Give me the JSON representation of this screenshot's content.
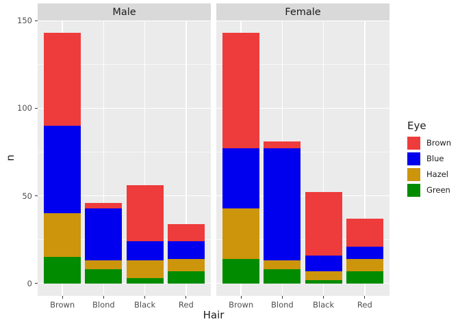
{
  "colors": {
    "background": "#FFFFFF",
    "panel_background": "#EBEBEB",
    "strip_background": "#D9D9D9",
    "grid_major": "#FFFFFF",
    "grid_minor": "#FFFFFF",
    "tick_mark": "#333333",
    "axis_text": "#4D4D4D",
    "title_text": "#1A1A1A"
  },
  "chart_data": {
    "type": "bar",
    "stacked": true,
    "title": "",
    "xlabel": "Hair",
    "ylabel": "n",
    "categories": [
      "Brown",
      "Blond",
      "Black",
      "Red"
    ],
    "y_ticks": [
      0,
      50,
      100,
      150
    ],
    "y_minor_gridlines": [
      25,
      75,
      125
    ],
    "y_range_expanded": [
      -7.15,
      150.15
    ],
    "grid": true,
    "legend": {
      "title": "Eye",
      "position": "right",
      "entries": [
        {
          "label": "Brown",
          "color": "#EE3B3B"
        },
        {
          "label": "Blue",
          "color": "#0000EE"
        },
        {
          "label": "Hazel",
          "color": "#CC950C"
        },
        {
          "label": "Green",
          "color": "#008B00"
        }
      ]
    },
    "stack_order_bottom_to_top": [
      "Green",
      "Hazel",
      "Blue",
      "Brown"
    ],
    "facets": [
      {
        "label": "Male",
        "series": [
          {
            "name": "Brown",
            "values": [
              53,
              3,
              32,
              10
            ]
          },
          {
            "name": "Blue",
            "values": [
              50,
              30,
              11,
              10
            ]
          },
          {
            "name": "Hazel",
            "values": [
              25,
              5,
              10,
              7
            ]
          },
          {
            "name": "Green",
            "values": [
              15,
              8,
              3,
              7
            ]
          }
        ]
      },
      {
        "label": "Female",
        "series": [
          {
            "name": "Brown",
            "values": [
              66,
              4,
              36,
              16
            ]
          },
          {
            "name": "Blue",
            "values": [
              34,
              64,
              9,
              7
            ]
          },
          {
            "name": "Hazel",
            "values": [
              29,
              5,
              5,
              7
            ]
          },
          {
            "name": "Green",
            "values": [
              14,
              8,
              2,
              7
            ]
          }
        ]
      }
    ]
  }
}
